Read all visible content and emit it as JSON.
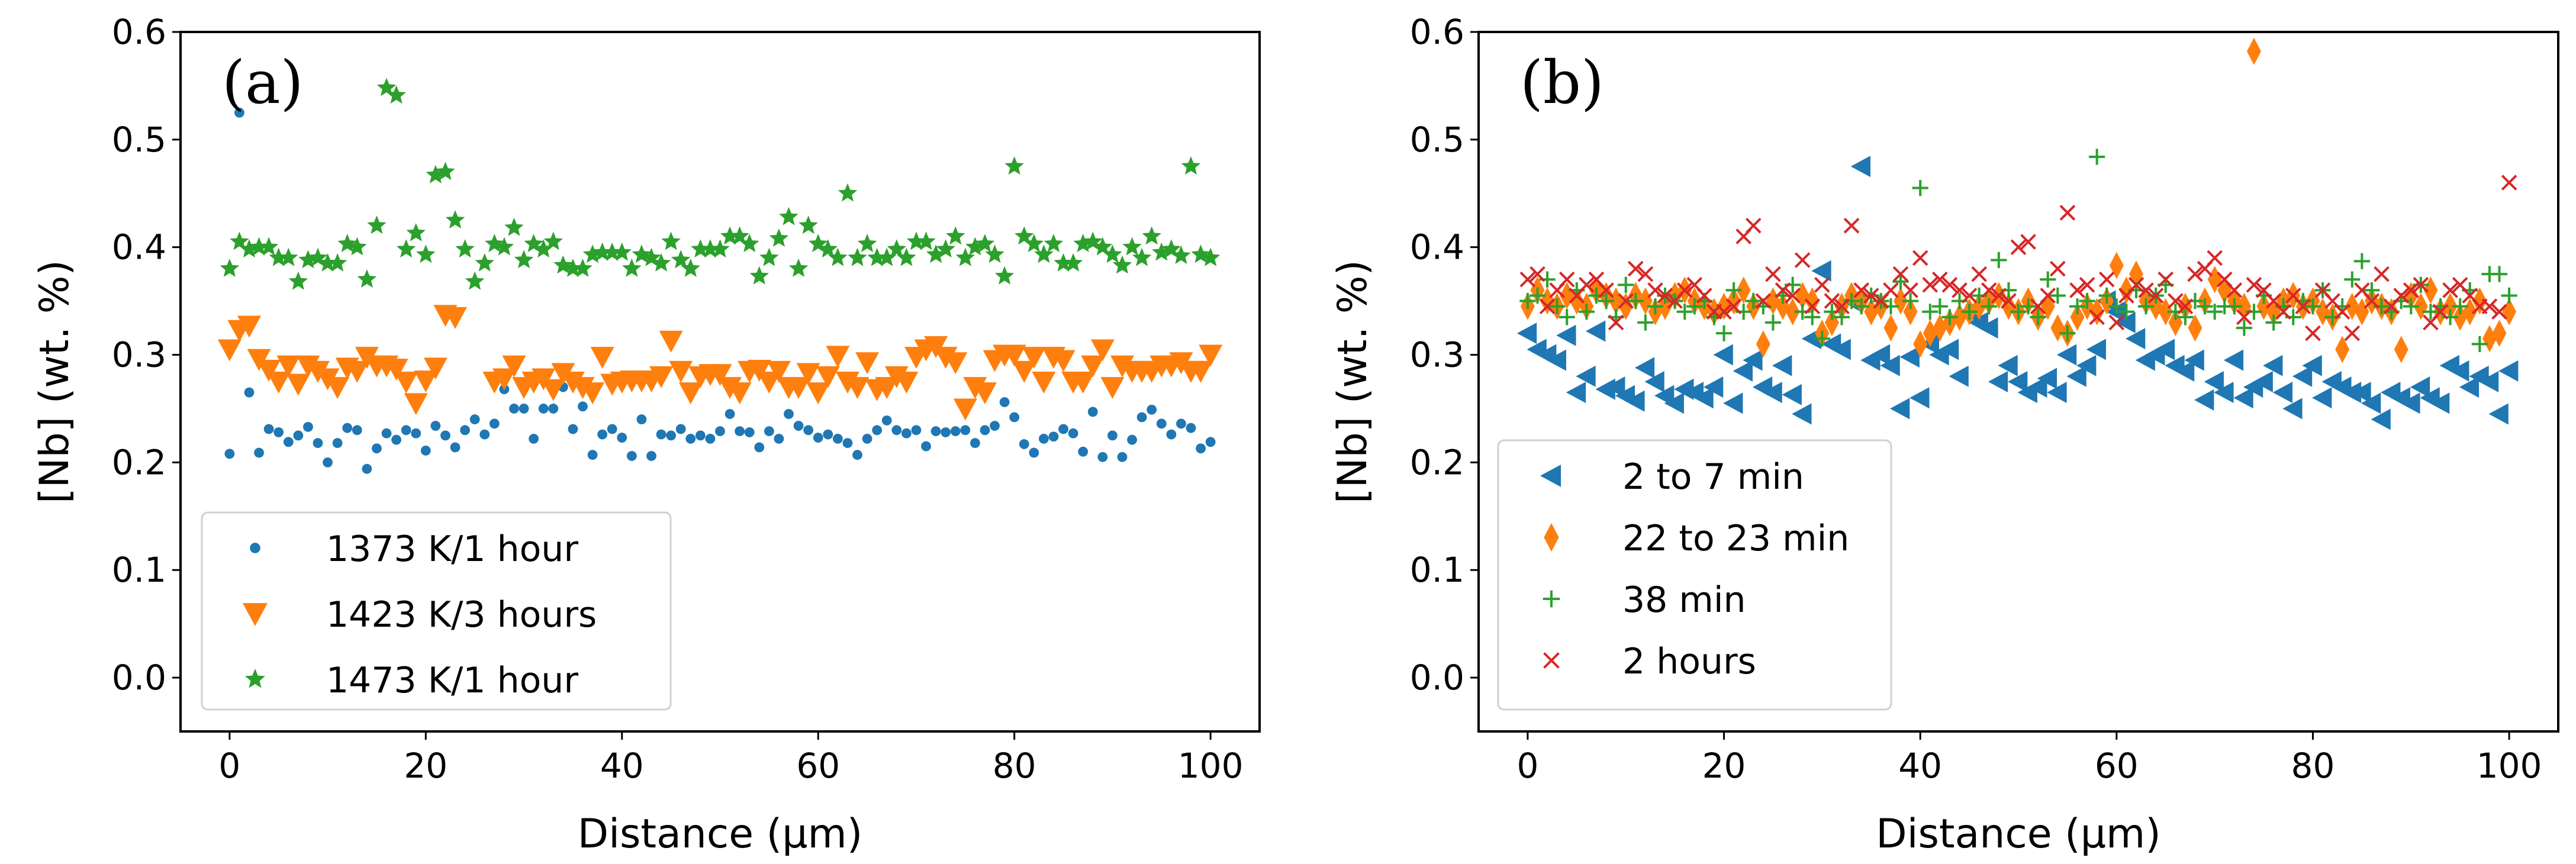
{
  "chart_data": [
    {
      "type": "scatter",
      "panel_label": "(a)",
      "xlabel": "Distance (μm)",
      "ylabel": "[Nb] (wt. %)",
      "xlim": [
        -5,
        105
      ],
      "ylim": [
        -0.05,
        0.6
      ],
      "xticks": [
        "0",
        "20",
        "40",
        "60",
        "80",
        "100"
      ],
      "yticks": [
        "0.0",
        "0.1",
        "0.2",
        "0.3",
        "0.4",
        "0.5",
        "0.6"
      ],
      "legend_position": "lower-left",
      "x_range": [
        0,
        100
      ],
      "series": [
        {
          "name": "1373 K/1 hour",
          "marker": "circle",
          "color": "#1f77b4",
          "values": [
            0.208,
            0.525,
            0.265,
            0.209,
            0.231,
            0.228,
            0.219,
            0.225,
            0.233,
            0.218,
            0.2,
            0.218,
            0.232,
            0.23,
            0.194,
            0.213,
            0.227,
            0.221,
            0.23,
            0.227,
            0.211,
            0.234,
            0.225,
            0.214,
            0.23,
            0.24,
            0.226,
            0.236,
            0.268,
            0.25,
            0.25,
            0.222,
            0.25,
            0.25,
            0.27,
            0.231,
            0.252,
            0.207,
            0.226,
            0.231,
            0.223,
            0.206,
            0.24,
            0.206,
            0.226,
            0.225,
            0.231,
            0.222,
            0.225,
            0.222,
            0.229,
            0.245,
            0.229,
            0.228,
            0.214,
            0.229,
            0.222,
            0.245,
            0.234,
            0.23,
            0.223,
            0.226,
            0.222,
            0.218,
            0.207,
            0.222,
            0.23,
            0.239,
            0.23,
            0.227,
            0.23,
            0.215,
            0.229,
            0.228,
            0.229,
            0.23,
            0.218,
            0.23,
            0.234,
            0.256,
            0.242,
            0.217,
            0.209,
            0.222,
            0.224,
            0.231,
            0.227,
            0.21,
            0.247,
            0.205,
            0.225,
            0.205,
            0.221,
            0.242,
            0.249,
            0.236,
            0.226,
            0.236,
            0.232,
            0.213,
            0.219
          ]
        },
        {
          "name": "1423 K/3 hours",
          "marker": "triangle-down",
          "color": "#ff7f0e",
          "values": [
            0.305,
            0.323,
            0.327,
            0.296,
            0.286,
            0.275,
            0.29,
            0.273,
            0.29,
            0.285,
            0.278,
            0.27,
            0.288,
            0.285,
            0.298,
            0.29,
            0.29,
            0.287,
            0.275,
            0.255,
            0.276,
            0.288,
            0.337,
            0.335,
            null,
            null,
            null,
            0.275,
            0.278,
            0.29,
            0.27,
            0.275,
            0.278,
            0.268,
            0.283,
            0.275,
            0.27,
            0.265,
            0.298,
            0.273,
            0.275,
            0.276,
            0.276,
            0.276,
            0.28,
            0.313,
            0.285,
            0.265,
            0.28,
            0.282,
            0.282,
            0.27,
            0.265,
            0.285,
            0.286,
            0.275,
            0.285,
            0.27,
            0.27,
            0.283,
            0.265,
            0.28,
            0.299,
            0.275,
            0.27,
            0.293,
            0.268,
            0.27,
            0.28,
            0.275,
            0.298,
            0.305,
            0.308,
            0.298,
            0.293,
            0.25,
            0.27,
            0.265,
            0.295,
            0.3,
            0.3,
            0.285,
            0.298,
            0.275,
            0.298,
            0.295,
            0.275,
            0.275,
            0.29,
            0.305,
            0.27,
            0.29,
            0.285,
            0.285,
            0.285,
            0.29,
            0.29,
            0.293,
            0.285,
            0.285,
            0.3
          ]
        },
        {
          "name": "1473 K/1 hour",
          "marker": "star",
          "color": "#2ca02c",
          "values": [
            0.38,
            0.405,
            0.398,
            0.4,
            0.4,
            0.39,
            0.39,
            0.368,
            0.388,
            0.39,
            0.385,
            0.385,
            0.403,
            0.4,
            0.37,
            0.42,
            0.548,
            0.541,
            0.398,
            0.413,
            0.393,
            0.467,
            0.47,
            0.425,
            0.398,
            0.368,
            0.385,
            0.403,
            0.4,
            0.418,
            0.388,
            0.403,
            0.398,
            0.405,
            0.383,
            0.38,
            0.38,
            0.393,
            0.395,
            0.395,
            0.395,
            0.38,
            0.393,
            0.39,
            0.385,
            0.405,
            0.388,
            0.38,
            0.398,
            0.398,
            0.398,
            0.41,
            0.41,
            0.403,
            0.373,
            0.39,
            0.408,
            0.428,
            0.38,
            0.42,
            0.403,
            0.398,
            0.39,
            0.45,
            0.39,
            0.403,
            0.39,
            0.39,
            0.398,
            0.39,
            0.405,
            0.405,
            0.393,
            0.398,
            0.41,
            0.39,
            0.4,
            0.403,
            0.393,
            0.373,
            0.475,
            0.41,
            0.403,
            0.393,
            0.403,
            0.385,
            0.385,
            0.403,
            0.405,
            0.4,
            0.393,
            0.383,
            0.4,
            0.39,
            0.41,
            0.395,
            0.398,
            0.392,
            0.475,
            0.393,
            0.39
          ]
        }
      ]
    },
    {
      "type": "scatter",
      "panel_label": "(b)",
      "xlabel": "Distance (μm)",
      "ylabel": "[Nb] (wt. %)",
      "xlim": [
        -5,
        105
      ],
      "ylim": [
        -0.05,
        0.6
      ],
      "xticks": [
        "0",
        "20",
        "40",
        "60",
        "80",
        "100"
      ],
      "yticks": [
        "0.0",
        "0.1",
        "0.2",
        "0.3",
        "0.4",
        "0.5",
        "0.6"
      ],
      "legend_position": "lower-left",
      "x_range": [
        0,
        100
      ],
      "series": [
        {
          "name": "2 to 7 min",
          "marker": "triangle-left",
          "color": "#1f77b4",
          "values": [
            0.32,
            0.305,
            0.3,
            0.295,
            0.318,
            0.265,
            0.28,
            0.322,
            0.268,
            0.27,
            0.262,
            0.257,
            0.288,
            0.275,
            0.262,
            0.255,
            0.268,
            0.265,
            0.26,
            0.27,
            0.3,
            0.255,
            0.285,
            0.295,
            0.27,
            0.265,
            0.29,
            0.263,
            0.245,
            0.315,
            0.378,
            0.31,
            0.305,
            0.35,
            0.475,
            0.295,
            0.3,
            0.29,
            0.25,
            0.298,
            0.26,
            0.31,
            0.3,
            0.305,
            0.28,
            0.34,
            0.33,
            0.325,
            0.275,
            0.29,
            0.275,
            0.265,
            0.27,
            0.278,
            0.265,
            0.3,
            0.28,
            0.29,
            0.305,
            0.35,
            0.34,
            0.33,
            0.315,
            0.295,
            0.3,
            0.305,
            0.29,
            0.285,
            0.295,
            0.258,
            0.275,
            0.265,
            0.295,
            0.26,
            0.27,
            0.275,
            0.29,
            0.265,
            0.25,
            0.28,
            0.29,
            0.26,
            0.275,
            0.27,
            0.265,
            0.265,
            0.255,
            0.24,
            0.265,
            0.26,
            0.255,
            0.27,
            0.26,
            0.255,
            0.29,
            0.285,
            0.27,
            0.28,
            0.275,
            0.245,
            0.285
          ]
        },
        {
          "name": "22 to 23 min",
          "marker": "diamond",
          "color": "#ff7f0e",
          "values": [
            0.345,
            0.36,
            0.35,
            0.345,
            0.355,
            0.35,
            0.345,
            0.36,
            0.355,
            0.35,
            0.345,
            0.355,
            0.35,
            0.34,
            0.345,
            0.355,
            0.36,
            0.35,
            0.345,
            0.34,
            0.345,
            0.35,
            0.36,
            0.345,
            0.31,
            0.35,
            0.345,
            0.34,
            0.355,
            0.35,
            0.32,
            0.33,
            0.345,
            0.355,
            0.35,
            0.34,
            0.345,
            0.325,
            0.35,
            0.34,
            0.31,
            0.32,
            0.325,
            0.33,
            0.335,
            0.34,
            0.345,
            0.35,
            0.355,
            0.345,
            0.34,
            0.35,
            0.335,
            0.345,
            0.325,
            0.32,
            0.335,
            0.345,
            0.34,
            0.35,
            0.383,
            0.36,
            0.375,
            0.35,
            0.345,
            0.34,
            0.33,
            0.345,
            0.325,
            0.35,
            0.37,
            0.36,
            0.35,
            0.345,
            0.582,
            0.345,
            0.34,
            0.35,
            0.355,
            0.345,
            0.35,
            0.34,
            0.335,
            0.305,
            0.345,
            0.34,
            0.35,
            0.345,
            0.34,
            0.305,
            0.355,
            0.345,
            0.36,
            0.34,
            0.345,
            0.335,
            0.34,
            0.35,
            0.315,
            0.32,
            0.34
          ]
        },
        {
          "name": "38 min",
          "marker": "plus",
          "color": "#2ca02c",
          "values": [
            0.35,
            0.355,
            0.37,
            0.345,
            0.335,
            0.36,
            0.34,
            0.355,
            0.35,
            0.335,
            0.365,
            0.35,
            0.33,
            0.345,
            0.355,
            0.35,
            0.34,
            0.345,
            0.35,
            0.335,
            0.32,
            0.36,
            0.34,
            0.35,
            0.345,
            0.33,
            0.355,
            0.365,
            0.34,
            0.335,
            0.315,
            0.34,
            0.335,
            0.35,
            0.345,
            0.355,
            0.35,
            0.345,
            0.368,
            0.35,
            0.455,
            0.34,
            0.345,
            0.335,
            0.35,
            0.34,
            0.355,
            0.345,
            0.388,
            0.36,
            0.34,
            0.345,
            0.335,
            0.37,
            0.355,
            0.32,
            0.345,
            0.35,
            0.484,
            0.355,
            0.345,
            0.34,
            0.36,
            0.345,
            0.355,
            0.365,
            0.34,
            0.335,
            0.35,
            0.345,
            0.34,
            0.345,
            0.345,
            0.325,
            0.34,
            0.355,
            0.33,
            0.345,
            0.335,
            0.35,
            0.345,
            0.36,
            0.335,
            0.345,
            0.37,
            0.387,
            0.36,
            0.345,
            0.34,
            0.35,
            0.345,
            0.365,
            0.34,
            0.345,
            0.335,
            0.345,
            0.36,
            0.31,
            0.375,
            0.375,
            0.355
          ]
        },
        {
          "name": "2 hours",
          "marker": "x",
          "color": "#d62728",
          "values": [
            0.37,
            0.375,
            0.345,
            0.36,
            0.37,
            0.355,
            0.365,
            0.37,
            0.36,
            0.33,
            0.35,
            0.38,
            0.375,
            0.36,
            0.355,
            0.35,
            0.36,
            0.365,
            0.355,
            0.34,
            0.34,
            0.345,
            0.41,
            0.42,
            0.35,
            0.375,
            0.36,
            0.355,
            0.388,
            0.345,
            0.365,
            0.35,
            0.345,
            0.42,
            0.36,
            0.355,
            0.35,
            0.36,
            0.375,
            0.36,
            0.39,
            0.365,
            0.37,
            0.365,
            0.36,
            0.355,
            0.375,
            0.36,
            0.355,
            0.35,
            0.4,
            0.405,
            0.345,
            0.355,
            0.38,
            0.432,
            0.36,
            0.365,
            0.335,
            0.37,
            0.33,
            0.355,
            0.365,
            0.36,
            0.355,
            0.37,
            0.35,
            0.345,
            0.375,
            0.38,
            0.39,
            0.37,
            0.36,
            0.335,
            0.365,
            0.36,
            0.35,
            0.34,
            0.355,
            0.345,
            0.32,
            0.36,
            0.35,
            0.34,
            0.32,
            0.36,
            0.35,
            0.375,
            0.345,
            0.355,
            0.36,
            0.365,
            0.33,
            0.34,
            0.36,
            0.365,
            0.355,
            0.345,
            0.345,
            0.34,
            0.46
          ]
        }
      ]
    }
  ]
}
